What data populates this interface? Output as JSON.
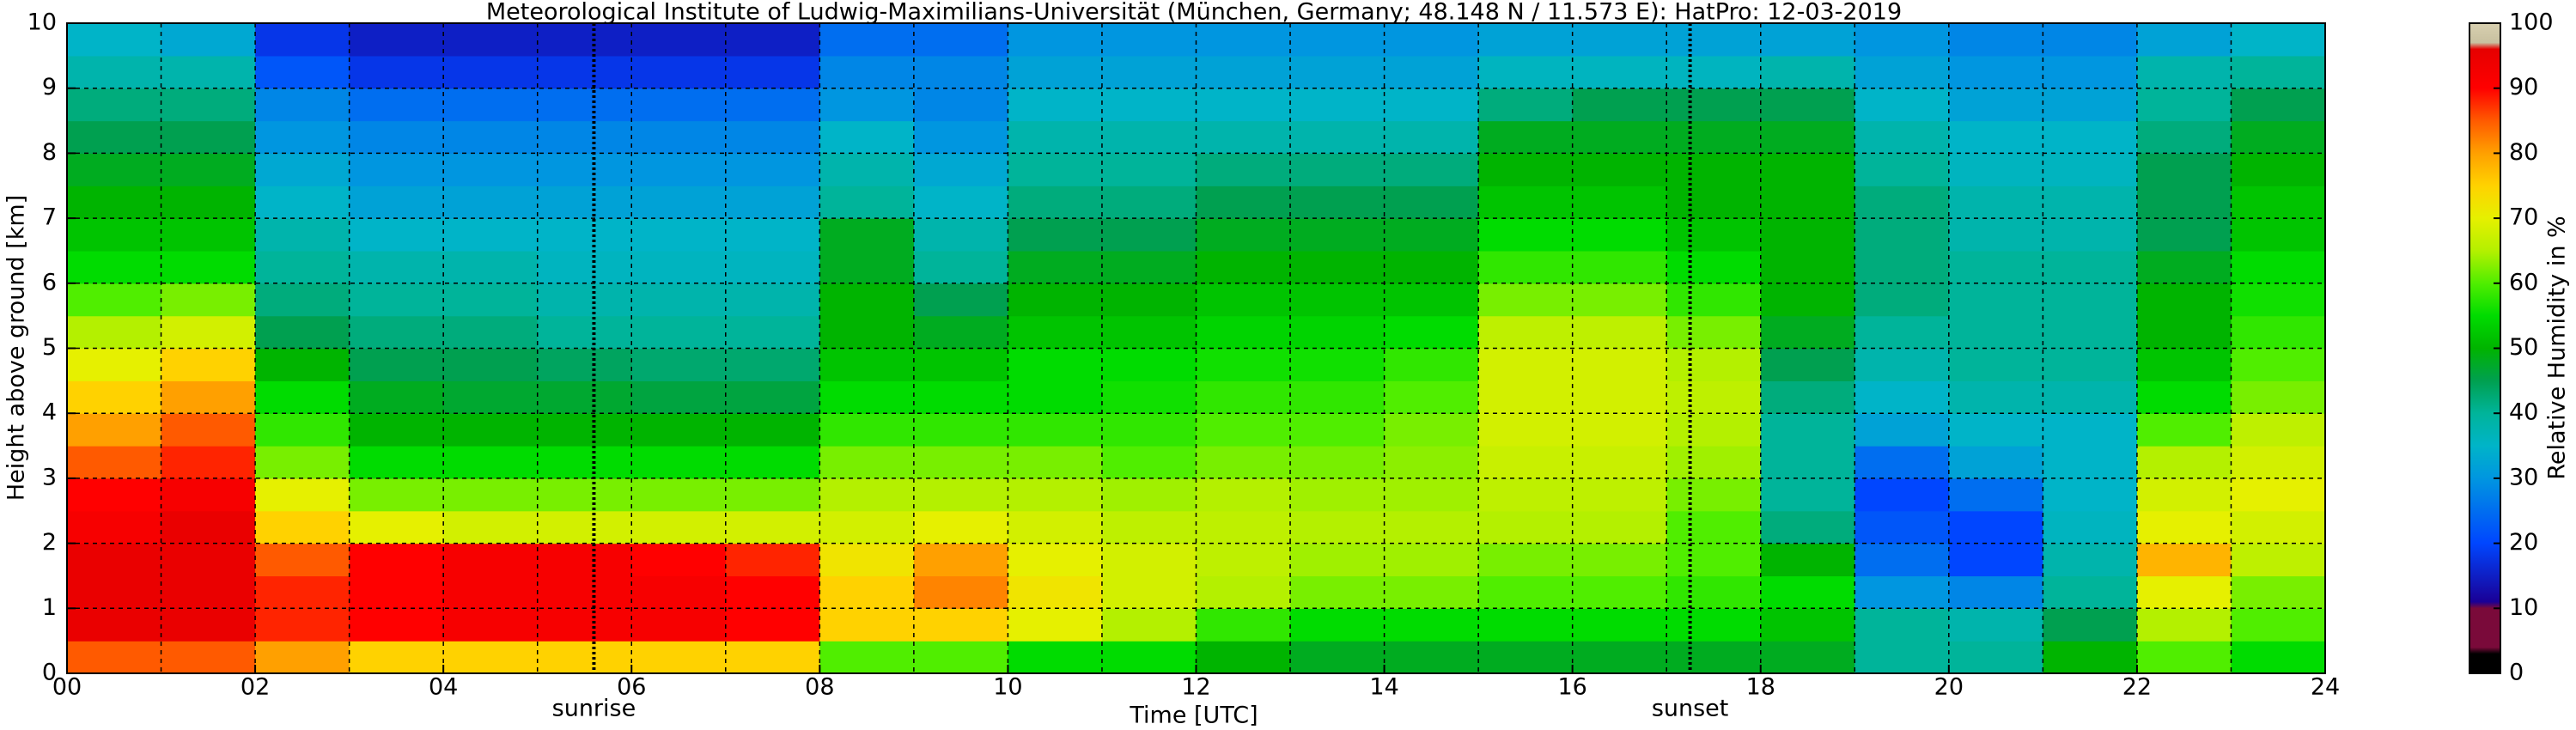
{
  "chart_data": {
    "type": "heatmap",
    "title": "Meteorological Institute of Ludwig-Maximilians-Universität (München, Germany; 48.148 N / 11.573 E):    HatPro: 12-03-2019",
    "x_label": "Time [UTC]",
    "y_label": "Height above ground [km]",
    "colorbar_label": "Relative Humidity in %",
    "xbins": [
      0,
      1,
      2,
      3,
      4,
      5,
      6,
      7,
      8,
      9,
      10,
      11,
      12,
      13,
      14,
      15,
      16,
      17,
      18,
      19,
      20,
      21,
      22,
      23,
      24
    ],
    "ybins": [
      0,
      0.5,
      1,
      1.5,
      2,
      2.5,
      3,
      3.5,
      4,
      4.5,
      5,
      5.5,
      6,
      6.5,
      7,
      7.5,
      8,
      8.5,
      9,
      9.5,
      10
    ],
    "z": [
      [
        85,
        95,
        95,
        95,
        92,
        90,
        85,
        80,
        75,
        70,
        65,
        60,
        55,
        52,
        50,
        48,
        45,
        42,
        38,
        35
      ],
      [
        85,
        95,
        95,
        95,
        95,
        92,
        88,
        85,
        80,
        75,
        68,
        62,
        55,
        52,
        50,
        48,
        45,
        42,
        38,
        33
      ],
      [
        80,
        88,
        88,
        85,
        75,
        70,
        62,
        58,
        55,
        50,
        45,
        42,
        40,
        38,
        35,
        33,
        30,
        28,
        22,
        18
      ],
      [
        75,
        90,
        90,
        90,
        70,
        62,
        55,
        50,
        48,
        45,
        42,
        40,
        38,
        35,
        32,
        30,
        28,
        25,
        18,
        15
      ],
      [
        75,
        92,
        92,
        92,
        68,
        62,
        55,
        50,
        47,
        45,
        42,
        40,
        38,
        35,
        32,
        30,
        28,
        25,
        18,
        15
      ],
      [
        75,
        92,
        92,
        92,
        68,
        62,
        55,
        50,
        47,
        44,
        40,
        38,
        36,
        35,
        32,
        30,
        28,
        25,
        18,
        15
      ],
      [
        75,
        92,
        92,
        90,
        68,
        62,
        55,
        50,
        46,
        43,
        40,
        38,
        36,
        35,
        32,
        30,
        28,
        25,
        18,
        15
      ],
      [
        75,
        90,
        90,
        88,
        68,
        62,
        55,
        50,
        46,
        43,
        40,
        38,
        36,
        35,
        32,
        30,
        28,
        25,
        18,
        15
      ],
      [
        60,
        75,
        75,
        72,
        68,
        65,
        62,
        58,
        55,
        52,
        50,
        50,
        48,
        48,
        40,
        38,
        35,
        30,
        28,
        25
      ],
      [
        60,
        75,
        82,
        80,
        70,
        65,
        62,
        58,
        55,
        52,
        48,
        45,
        40,
        38,
        35,
        33,
        30,
        28,
        28,
        25
      ],
      [
        55,
        70,
        72,
        70,
        68,
        65,
        62,
        58,
        55,
        55,
        52,
        50,
        48,
        45,
        42,
        40,
        38,
        35,
        32,
        30
      ],
      [
        55,
        65,
        68,
        68,
        66,
        64,
        60,
        58,
        56,
        55,
        52,
        50,
        48,
        45,
        42,
        40,
        38,
        35,
        32,
        30
      ],
      [
        50,
        58,
        65,
        66,
        66,
        65,
        62,
        60,
        58,
        56,
        54,
        52,
        50,
        48,
        45,
        42,
        38,
        35,
        32,
        30
      ],
      [
        48,
        55,
        62,
        64,
        65,
        64,
        62,
        60,
        58,
        56,
        54,
        52,
        50,
        48,
        45,
        42,
        38,
        35,
        32,
        30
      ],
      [
        48,
        55,
        62,
        64,
        65,
        64,
        63,
        62,
        60,
        58,
        55,
        52,
        50,
        48,
        45,
        42,
        38,
        35,
        32,
        30
      ],
      [
        48,
        55,
        60,
        62,
        65,
        66,
        67,
        68,
        68,
        68,
        66,
        62,
        58,
        55,
        52,
        50,
        48,
        42,
        36,
        32
      ],
      [
        48,
        55,
        60,
        62,
        65,
        66,
        67,
        68,
        68,
        68,
        66,
        62,
        58,
        55,
        52,
        50,
        48,
        45,
        36,
        32
      ],
      [
        48,
        55,
        58,
        60,
        60,
        62,
        64,
        65,
        66,
        65,
        62,
        58,
        55,
        52,
        50,
        50,
        48,
        45,
        36,
        32
      ],
      [
        48,
        52,
        55,
        50,
        42,
        40,
        40,
        40,
        42,
        45,
        48,
        50,
        50,
        50,
        50,
        50,
        48,
        45,
        38,
        32
      ],
      [
        40,
        40,
        30,
        25,
        22,
        20,
        25,
        32,
        35,
        38,
        40,
        42,
        42,
        42,
        42,
        40,
        38,
        35,
        32,
        30
      ],
      [
        40,
        38,
        28,
        20,
        20,
        25,
        32,
        35,
        38,
        40,
        40,
        40,
        40,
        38,
        38,
        36,
        35,
        32,
        30,
        28
      ],
      [
        50,
        45,
        40,
        38,
        36,
        35,
        35,
        35,
        38,
        40,
        40,
        40,
        40,
        38,
        38,
        36,
        35,
        32,
        30,
        28
      ],
      [
        60,
        65,
        70,
        78,
        70,
        68,
        65,
        60,
        55,
        52,
        50,
        50,
        48,
        45,
        45,
        45,
        42,
        40,
        38,
        32
      ],
      [
        55,
        60,
        62,
        66,
        68,
        70,
        68,
        66,
        62,
        60,
        58,
        56,
        55,
        52,
        52,
        50,
        48,
        45,
        40,
        35
      ]
    ],
    "xlim": [
      0,
      24
    ],
    "ylim": [
      0,
      10
    ],
    "zlim": [
      0,
      100
    ],
    "xticks": [
      {
        "value": 0,
        "label": "00"
      },
      {
        "value": 2,
        "label": "02"
      },
      {
        "value": 4,
        "label": "04"
      },
      {
        "value": 6,
        "label": "06"
      },
      {
        "value": 8,
        "label": "08"
      },
      {
        "value": 10,
        "label": "10"
      },
      {
        "value": 12,
        "label": "12"
      },
      {
        "value": 14,
        "label": "14"
      },
      {
        "value": 16,
        "label": "16"
      },
      {
        "value": 18,
        "label": "18"
      },
      {
        "value": 20,
        "label": "20"
      },
      {
        "value": 22,
        "label": "22"
      },
      {
        "value": 24,
        "label": "24"
      }
    ],
    "xminorticks": [
      1,
      3,
      5,
      7,
      9,
      11,
      13,
      15,
      17,
      19,
      21,
      23
    ],
    "yticks": [
      0,
      1,
      2,
      3,
      4,
      5,
      6,
      7,
      8,
      9,
      10
    ],
    "colorbar_ticks": [
      0,
      10,
      20,
      30,
      40,
      50,
      60,
      70,
      80,
      90,
      100
    ],
    "grid": true,
    "annotations": [
      {
        "text": "sunrise",
        "x": 5.6
      },
      {
        "text": "sunset",
        "x": 17.25
      }
    ],
    "colorscale": [
      [
        0,
        "#000000"
      ],
      [
        3,
        "#000000"
      ],
      [
        4,
        "#7a0a3a"
      ],
      [
        10,
        "#7a0a3a"
      ],
      [
        11,
        "#1a0096"
      ],
      [
        20,
        "#0046ff"
      ],
      [
        30,
        "#0096e0"
      ],
      [
        35,
        "#00b4c8"
      ],
      [
        40,
        "#00b49a"
      ],
      [
        45,
        "#00a050"
      ],
      [
        50,
        "#00b400"
      ],
      [
        55,
        "#00dc00"
      ],
      [
        60,
        "#50ee00"
      ],
      [
        65,
        "#b4f000"
      ],
      [
        70,
        "#e6f000"
      ],
      [
        75,
        "#ffd200"
      ],
      [
        80,
        "#ffa000"
      ],
      [
        85,
        "#ff5a00"
      ],
      [
        90,
        "#ff0000"
      ],
      [
        96,
        "#e60000"
      ],
      [
        97,
        "#c8c0a0"
      ],
      [
        100,
        "#d8d0b0"
      ]
    ]
  }
}
